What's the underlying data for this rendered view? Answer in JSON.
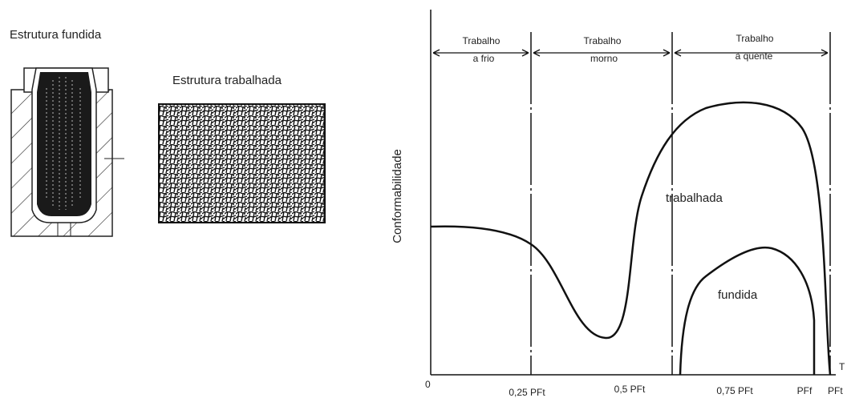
{
  "left": {
    "cast_title": "Estrutura fundida",
    "wrought_title": "Estrutura trabalhada"
  },
  "graph": {
    "y_label": "Conformabilidade",
    "x_label": "T",
    "regions": [
      {
        "line1": "Trabalho",
        "line2": "a frio"
      },
      {
        "line1": "Trabalho",
        "line2": "morno"
      },
      {
        "line1": "Trabalho",
        "line2": "à quente"
      }
    ],
    "curves": {
      "wrought": "trabalhada",
      "cast": "fundida"
    },
    "x_labels": [
      "0",
      "0,25 PFt",
      "0,5 PFt",
      "0,75 PFt",
      "PFf",
      "PFt"
    ]
  }
}
